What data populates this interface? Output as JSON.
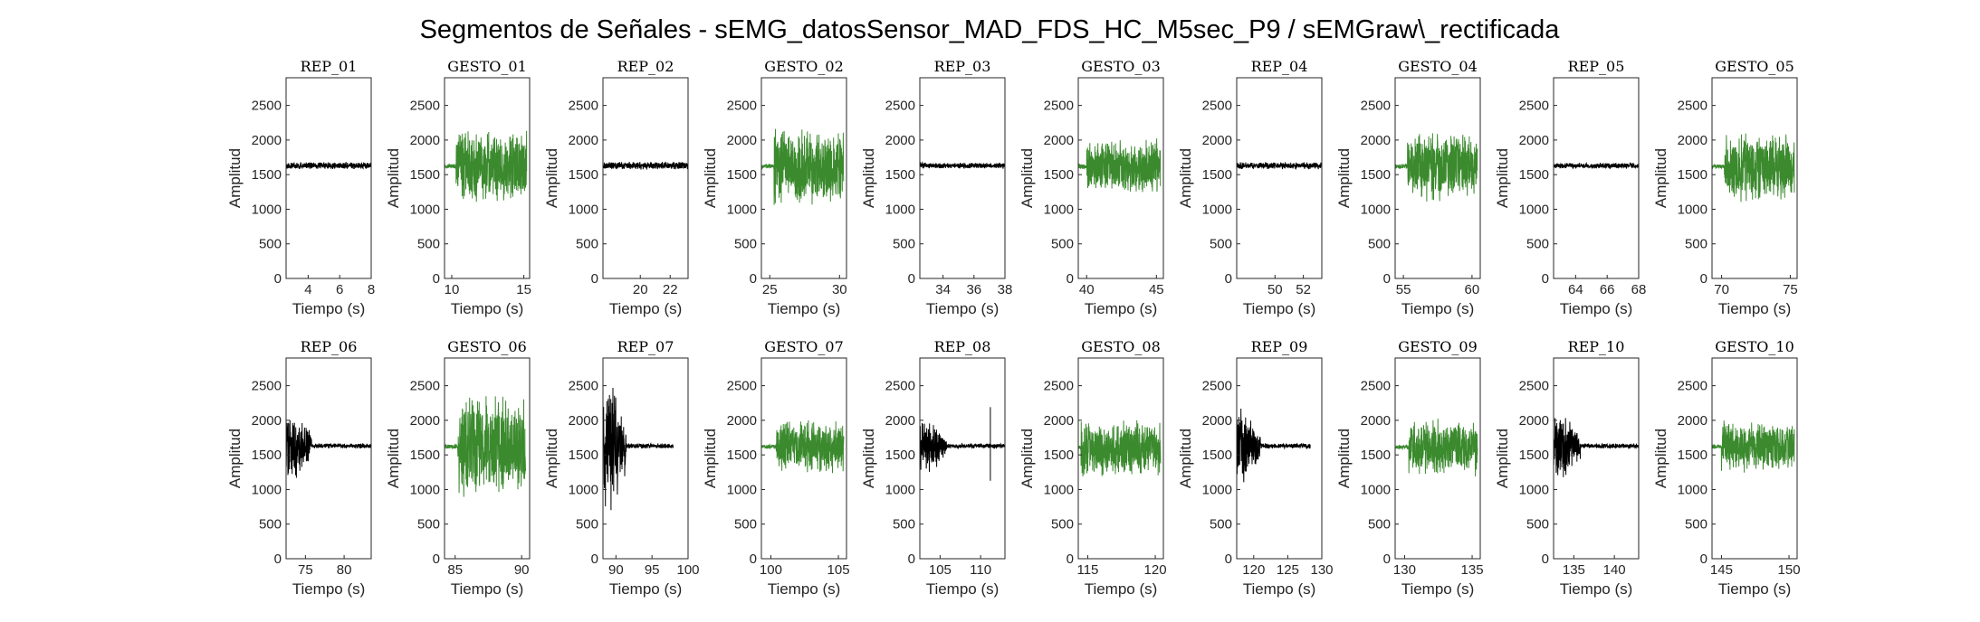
{
  "figure": {
    "title": "Segmentos de Señales - sEMG_datosSensor_MAD_FDS_HC_M5sec_P9 / sEMGraw\\_rectificada",
    "ylabel": "Amplitud",
    "xlabel": "Tiempo (s)",
    "colors": {
      "rep": "#000000",
      "gesto": "#3b8a2e",
      "axis": "#262626",
      "background": "#ffffff"
    }
  },
  "chart_data": [
    {
      "type": "line",
      "title": "REP_01",
      "series_color": "#000000",
      "xlim": [
        2.6,
        8
      ],
      "ylim": [
        0,
        2900
      ],
      "xticks": [
        4,
        6,
        8
      ],
      "yticks": [
        0,
        500,
        1000,
        1500,
        2000,
        2500
      ],
      "signal": {
        "start": 2.6,
        "end": 8,
        "baseline": 1630,
        "burst_end": 2.6,
        "burst_amp": 0,
        "tail_amp": 55
      },
      "xlabel": "Tiempo (s)",
      "ylabel": "Amplitud"
    },
    {
      "type": "line",
      "title": "GESTO_01",
      "series_color": "#3b8a2e",
      "xlim": [
        9.5,
        15.4
      ],
      "ylim": [
        0,
        2900
      ],
      "xticks": [
        10,
        15
      ],
      "yticks": [
        0,
        500,
        1000,
        1500,
        2000,
        2500
      ],
      "signal": {
        "start": 9.5,
        "end": 15.2,
        "baseline": 1620,
        "burst_start": 10.3,
        "burst_end": 15.2,
        "burst_amp": 560,
        "tail_amp": 40
      },
      "xlabel": "Tiempo (s)",
      "ylabel": "Amplitud"
    },
    {
      "type": "line",
      "title": "REP_02",
      "series_color": "#000000",
      "xlim": [
        17.5,
        23.2
      ],
      "ylim": [
        0,
        2900
      ],
      "xticks": [
        20,
        22
      ],
      "yticks": [
        0,
        500,
        1000,
        1500,
        2000,
        2500
      ],
      "signal": {
        "start": 17.5,
        "end": 23.2,
        "baseline": 1630,
        "burst_end": 17.5,
        "burst_amp": 0,
        "tail_amp": 60
      },
      "xlabel": "Tiempo (s)",
      "ylabel": "Amplitud"
    },
    {
      "type": "line",
      "title": "GESTO_02",
      "series_color": "#3b8a2e",
      "xlim": [
        24.4,
        30.5
      ],
      "ylim": [
        0,
        2900
      ],
      "xticks": [
        25,
        30
      ],
      "yticks": [
        0,
        500,
        1000,
        1500,
        2000,
        2500
      ],
      "signal": {
        "start": 24.4,
        "end": 30.3,
        "baseline": 1620,
        "burst_start": 25.3,
        "burst_end": 30.3,
        "burst_amp": 600,
        "tail_amp": 40
      },
      "xlabel": "Tiempo (s)",
      "ylabel": "Amplitud"
    },
    {
      "type": "line",
      "title": "REP_03",
      "series_color": "#000000",
      "xlim": [
        32.5,
        38
      ],
      "ylim": [
        0,
        2900
      ],
      "xticks": [
        34,
        36,
        38
      ],
      "yticks": [
        0,
        500,
        1000,
        1500,
        2000,
        2500
      ],
      "signal": {
        "start": 32.5,
        "end": 38,
        "baseline": 1630,
        "burst_end": 32.5,
        "burst_amp": 0,
        "tail_amp": 45
      },
      "xlabel": "Tiempo (s)",
      "ylabel": "Amplitud"
    },
    {
      "type": "line",
      "title": "GESTO_03",
      "series_color": "#3b8a2e",
      "xlim": [
        39.4,
        45.5
      ],
      "ylim": [
        0,
        2900
      ],
      "xticks": [
        40,
        45
      ],
      "yticks": [
        0,
        500,
        1000,
        1500,
        2000,
        2500
      ],
      "signal": {
        "start": 39.4,
        "end": 45.3,
        "baseline": 1620,
        "burst_start": 40.0,
        "burst_end": 45.3,
        "burst_amp": 420,
        "tail_amp": 40
      },
      "xlabel": "Tiempo (s)",
      "ylabel": "Amplitud"
    },
    {
      "type": "line",
      "title": "REP_04",
      "series_color": "#000000",
      "xlim": [
        47.3,
        53.3
      ],
      "ylim": [
        0,
        2900
      ],
      "xticks": [
        50,
        52
      ],
      "yticks": [
        0,
        500,
        1000,
        1500,
        2000,
        2500
      ],
      "signal": {
        "start": 47.3,
        "end": 53.3,
        "baseline": 1630,
        "burst_end": 47.3,
        "burst_amp": 0,
        "tail_amp": 55
      },
      "xlabel": "Tiempo (s)",
      "ylabel": "Amplitud"
    },
    {
      "type": "line",
      "title": "GESTO_04",
      "series_color": "#3b8a2e",
      "xlim": [
        54.4,
        60.6
      ],
      "ylim": [
        0,
        2900
      ],
      "xticks": [
        55,
        60
      ],
      "yticks": [
        0,
        500,
        1000,
        1500,
        2000,
        2500
      ],
      "signal": {
        "start": 54.4,
        "end": 60.4,
        "baseline": 1620,
        "burst_start": 55.3,
        "burst_end": 60.4,
        "burst_amp": 520,
        "tail_amp": 40
      },
      "xlabel": "Tiempo (s)",
      "ylabel": "Amplitud"
    },
    {
      "type": "line",
      "title": "REP_05",
      "series_color": "#000000",
      "xlim": [
        62.6,
        68
      ],
      "ylim": [
        0,
        2900
      ],
      "xticks": [
        64,
        66,
        68
      ],
      "yticks": [
        0,
        500,
        1000,
        1500,
        2000,
        2500
      ],
      "signal": {
        "start": 62.6,
        "end": 68,
        "baseline": 1630,
        "burst_end": 62.6,
        "burst_amp": 0,
        "tail_amp": 45
      },
      "xlabel": "Tiempo (s)",
      "ylabel": "Amplitud"
    },
    {
      "type": "line",
      "title": "GESTO_05",
      "series_color": "#3b8a2e",
      "xlim": [
        69.3,
        75.5
      ],
      "ylim": [
        0,
        2900
      ],
      "xticks": [
        70,
        75
      ],
      "yticks": [
        0,
        500,
        1000,
        1500,
        2000,
        2500
      ],
      "signal": {
        "start": 69.3,
        "end": 75.3,
        "baseline": 1620,
        "burst_start": 70.2,
        "burst_end": 75.3,
        "burst_amp": 520,
        "tail_amp": 40
      },
      "xlabel": "Tiempo (s)",
      "ylabel": "Amplitud"
    },
    {
      "type": "line",
      "title": "REP_06",
      "series_color": "#000000",
      "xlim": [
        72.5,
        83.5
      ],
      "ylim": [
        0,
        2900
      ],
      "xticks": [
        75,
        80
      ],
      "yticks": [
        0,
        500,
        1000,
        1500,
        2000,
        2500
      ],
      "signal": {
        "start": 72.5,
        "end": 83.5,
        "baseline": 1630,
        "burst_end": 75.8,
        "burst_amp": 560,
        "tail_amp": 40
      },
      "xlabel": "Tiempo (s)",
      "ylabel": "Amplitud"
    },
    {
      "type": "line",
      "title": "GESTO_06",
      "series_color": "#3b8a2e",
      "xlim": [
        84.2,
        90.6
      ],
      "ylim": [
        0,
        2900
      ],
      "xticks": [
        85,
        90
      ],
      "yticks": [
        0,
        500,
        1000,
        1500,
        2000,
        2500
      ],
      "signal": {
        "start": 84.2,
        "end": 90.3,
        "baseline": 1620,
        "burst_start": 85.2,
        "burst_end": 90.3,
        "burst_amp": 760,
        "tail_amp": 40
      },
      "xlabel": "Tiempo (s)",
      "ylabel": "Amplitud"
    },
    {
      "type": "line",
      "title": "REP_07",
      "series_color": "#000000",
      "xlim": [
        88.2,
        100
      ],
      "ylim": [
        0,
        2900
      ],
      "xticks": [
        90,
        95,
        100
      ],
      "yticks": [
        0,
        500,
        1000,
        1500,
        2000,
        2500
      ],
      "signal": {
        "start": 88.2,
        "end": 98,
        "baseline": 1630,
        "burst_end": 91.4,
        "burst_amp": 1050,
        "tail_amp": 40
      },
      "xlabel": "Tiempo (s)",
      "ylabel": "Amplitud"
    },
    {
      "type": "line",
      "title": "GESTO_07",
      "series_color": "#3b8a2e",
      "xlim": [
        99.3,
        105.6
      ],
      "ylim": [
        0,
        2900
      ],
      "xticks": [
        100,
        105
      ],
      "yticks": [
        0,
        500,
        1000,
        1500,
        2000,
        2500
      ],
      "signal": {
        "start": 99.3,
        "end": 105.4,
        "baseline": 1620,
        "burst_start": 100.4,
        "burst_end": 105.4,
        "burst_amp": 400,
        "tail_amp": 40
      },
      "xlabel": "Tiempo (s)",
      "ylabel": "Amplitud"
    },
    {
      "type": "line",
      "title": "REP_08",
      "series_color": "#000000",
      "xlim": [
        102.5,
        113
      ],
      "ylim": [
        0,
        2900
      ],
      "xticks": [
        105,
        110
      ],
      "yticks": [
        0,
        500,
        1000,
        1500,
        2000,
        2500
      ],
      "signal": {
        "start": 102.5,
        "end": 113,
        "baseline": 1630,
        "burst_end": 105.8,
        "burst_amp": 420,
        "tail_amp": 40,
        "spike_x": 111.2,
        "spike_amp": 560
      },
      "xlabel": "Tiempo (s)",
      "ylabel": "Amplitud"
    },
    {
      "type": "line",
      "title": "GESTO_08",
      "series_color": "#3b8a2e",
      "xlim": [
        114.3,
        120.6
      ],
      "ylim": [
        0,
        2900
      ],
      "xticks": [
        115,
        120
      ],
      "yticks": [
        0,
        500,
        1000,
        1500,
        2000,
        2500
      ],
      "signal": {
        "start": 114.3,
        "end": 120.4,
        "baseline": 1600,
        "burst_start": 114.5,
        "burst_end": 120.4,
        "burst_amp": 420,
        "tail_amp": 40
      },
      "xlabel": "Tiempo (s)",
      "ylabel": "Amplitud"
    },
    {
      "type": "line",
      "title": "REP_09",
      "series_color": "#000000",
      "xlim": [
        117.5,
        130
      ],
      "ylim": [
        0,
        2900
      ],
      "xticks": [
        120,
        125,
        130
      ],
      "yticks": [
        0,
        500,
        1000,
        1500,
        2000,
        2500
      ],
      "signal": {
        "start": 117.5,
        "end": 128.3,
        "baseline": 1630,
        "burst_end": 121,
        "burst_amp": 560,
        "tail_amp": 40
      },
      "xlabel": "Tiempo (s)",
      "ylabel": "Amplitud"
    },
    {
      "type": "line",
      "title": "GESTO_09",
      "series_color": "#3b8a2e",
      "xlim": [
        129.3,
        135.6
      ],
      "ylim": [
        0,
        2900
      ],
      "xticks": [
        130,
        135
      ],
      "yticks": [
        0,
        500,
        1000,
        1500,
        2000,
        2500
      ],
      "signal": {
        "start": 129.3,
        "end": 135.4,
        "baseline": 1610,
        "burst_start": 130.3,
        "burst_end": 135.4,
        "burst_amp": 430,
        "tail_amp": 40
      },
      "xlabel": "Tiempo (s)",
      "ylabel": "Amplitud"
    },
    {
      "type": "line",
      "title": "REP_10",
      "series_color": "#000000",
      "xlim": [
        132.5,
        143
      ],
      "ylim": [
        0,
        2900
      ],
      "xticks": [
        135,
        140
      ],
      "yticks": [
        0,
        500,
        1000,
        1500,
        2000,
        2500
      ],
      "signal": {
        "start": 132.5,
        "end": 143,
        "baseline": 1630,
        "burst_end": 135.8,
        "burst_amp": 550,
        "tail_amp": 40
      },
      "xlabel": "Tiempo (s)",
      "ylabel": "Amplitud"
    },
    {
      "type": "line",
      "title": "GESTO_10",
      "series_color": "#3b8a2e",
      "xlim": [
        144.3,
        150.6
      ],
      "ylim": [
        0,
        2900
      ],
      "xticks": [
        145,
        150
      ],
      "yticks": [
        0,
        500,
        1000,
        1500,
        2000,
        2500
      ],
      "signal": {
        "start": 144.3,
        "end": 150.4,
        "baseline": 1620,
        "burst_start": 145.0,
        "burst_end": 150.4,
        "burst_amp": 380,
        "tail_amp": 40
      },
      "xlabel": "Tiempo (s)",
      "ylabel": "Amplitud"
    }
  ]
}
